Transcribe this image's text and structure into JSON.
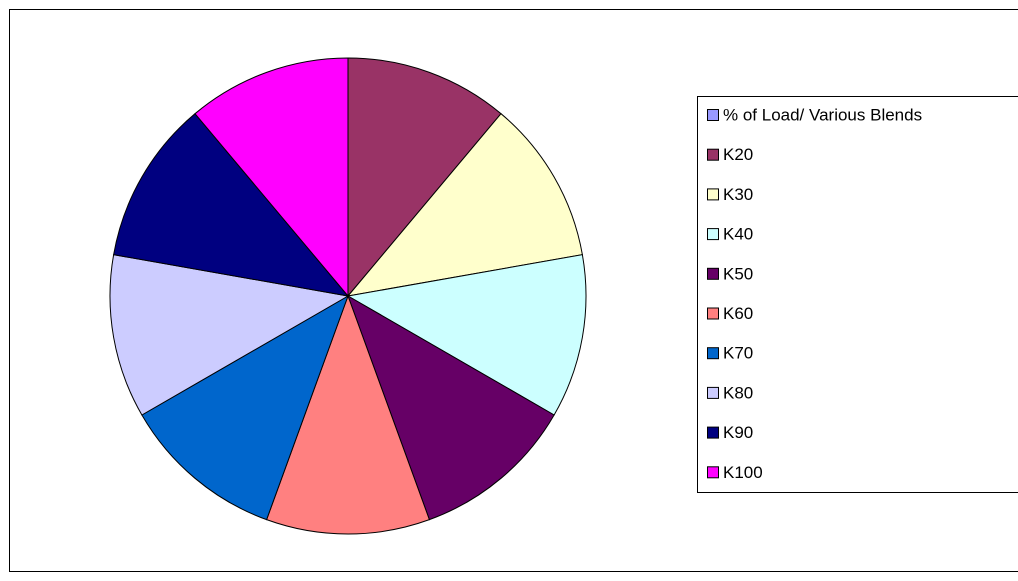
{
  "chart_data": {
    "type": "pie",
    "categories": [
      "% of Load/ Various Blends",
      "K20",
      "K30",
      "K40",
      "K50",
      "K60",
      "K70",
      "K80",
      "K90",
      "K100"
    ],
    "values": [
      0,
      11.1,
      11.1,
      11.1,
      11.1,
      11.1,
      11.1,
      11.1,
      11.1,
      11.1
    ],
    "colors": [
      "#9999ff",
      "#993366",
      "#ffffcc",
      "#ccffff",
      "#660066",
      "#ff8080",
      "#0066cc",
      "#ccccff",
      "#000080",
      "#ff00ff"
    ],
    "legend": "right"
  }
}
